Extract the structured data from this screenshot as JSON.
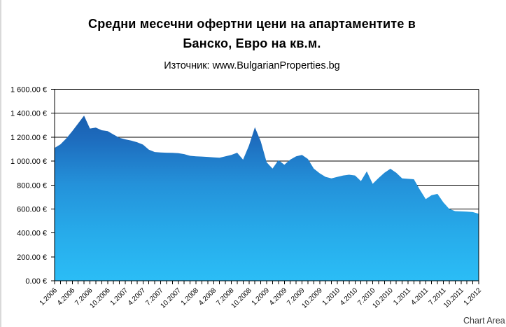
{
  "chart": {
    "title_line1": "Средни месечни офертни цени на апартаментите в",
    "title_line2": "Банско, Евро на кв.м.",
    "subtitle": "Източник: www.BulgarianProperties.bg",
    "chart_area_tooltip": "Chart Area"
  },
  "chart_data": {
    "type": "area",
    "title": "Средни месечни офертни цени на апартаментите в Банско, Евро на кв.м.",
    "subtitle": "Източник: www.BulgarianProperties.bg",
    "x": [
      "1.2006",
      "2.2006",
      "3.2006",
      "4.2006",
      "5.2006",
      "6.2006",
      "7.2006",
      "8.2006",
      "9.2006",
      "10.2006",
      "11.2006",
      "12.2006",
      "1.2007",
      "2.2007",
      "3.2007",
      "4.2007",
      "5.2007",
      "6.2007",
      "7.2007",
      "8.2007",
      "9.2007",
      "10.2007",
      "11.2007",
      "12.2007",
      "1.2008",
      "2.2008",
      "3.2008",
      "4.2008",
      "5.2008",
      "6.2008",
      "7.2008",
      "8.2008",
      "9.2008",
      "10.2008",
      "11.2008",
      "12.2008",
      "1.2009",
      "2.2009",
      "3.2009",
      "4.2009",
      "5.2009",
      "6.2009",
      "7.2009",
      "8.2009",
      "9.2009",
      "10.2009",
      "11.2009",
      "12.2009",
      "1.2010",
      "2.2010",
      "3.2010",
      "4.2010",
      "5.2010",
      "6.2010",
      "7.2010",
      "8.2010",
      "9.2010",
      "10.2010",
      "11.2010",
      "12.2010",
      "1.2011",
      "2.2011",
      "3.2011",
      "4.2011",
      "5.2011",
      "6.2011",
      "7.2011",
      "8.2011",
      "9.2011",
      "10.2011",
      "11.2011",
      "12.2011",
      "1.2012"
    ],
    "values": [
      1110,
      1140,
      1190,
      1250,
      1315,
      1380,
      1272,
      1280,
      1258,
      1250,
      1222,
      1195,
      1182,
      1172,
      1158,
      1138,
      1095,
      1076,
      1072,
      1070,
      1069,
      1066,
      1058,
      1044,
      1040,
      1038,
      1035,
      1031,
      1028,
      1040,
      1052,
      1070,
      1012,
      1130,
      1283,
      1165,
      990,
      938,
      1008,
      970,
      1012,
      1040,
      1052,
      1018,
      938,
      898,
      868,
      856,
      868,
      880,
      886,
      880,
      833,
      914,
      810,
      858,
      902,
      936,
      902,
      856,
      852,
      848,
      762,
      682,
      715,
      726,
      655,
      600,
      582,
      580,
      578,
      574,
      560
    ],
    "x_tick_label_every": 3,
    "ylim": [
      0,
      1600
    ],
    "y_tick_step": 200,
    "y_tick_labels": [
      "0.00 €",
      "200.00 €",
      "400.00 €",
      "600.00 €",
      "800.00 €",
      "1 000.00 €",
      "1 200.00 €",
      "1 400.00 €",
      "1 600.00 €"
    ],
    "grid": true,
    "legend": false,
    "axis_color": "#000000",
    "area_gradient_top": "#14509E",
    "area_gradient_bottom": "#2BBDF6"
  }
}
